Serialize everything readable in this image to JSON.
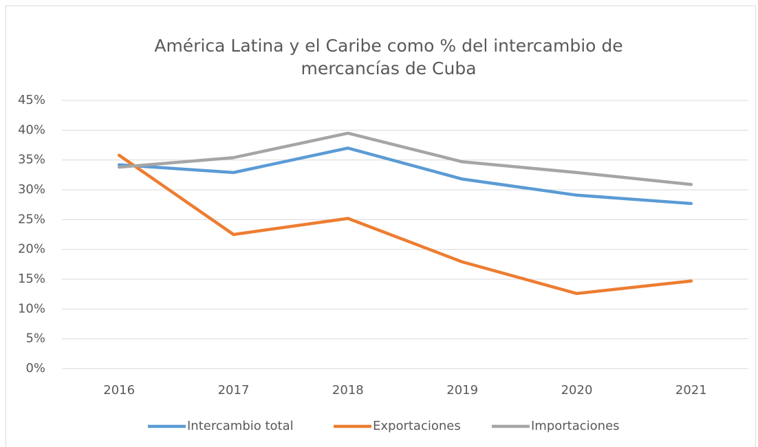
{
  "chart_data": {
    "type": "line",
    "title": "América Latina y el Caribe como % del intercambio de mercancías de Cuba",
    "categories": [
      "2016",
      "2017",
      "2018",
      "2019",
      "2020",
      "2021"
    ],
    "series": [
      {
        "name": "Intercambio total",
        "color": "#5b9bd5",
        "values": [
          34.2,
          32.9,
          37.0,
          31.8,
          29.1,
          27.7
        ]
      },
      {
        "name": "Exportaciones",
        "color": "#ed7d31",
        "values": [
          35.8,
          22.5,
          25.2,
          17.9,
          12.6,
          14.7
        ]
      },
      {
        "name": "Importaciones",
        "color": "#a5a5a5",
        "values": [
          33.8,
          35.4,
          39.5,
          34.7,
          32.9,
          30.9
        ]
      }
    ],
    "ylim": [
      0,
      45
    ],
    "yticks": [
      {
        "value": 0,
        "label": "0%"
      },
      {
        "value": 5,
        "label": "5%"
      },
      {
        "value": 10,
        "label": "10%"
      },
      {
        "value": 15,
        "label": "15%"
      },
      {
        "value": 20,
        "label": "20%"
      },
      {
        "value": 25,
        "label": "25%"
      },
      {
        "value": 30,
        "label": "30%"
      },
      {
        "value": 35,
        "label": "35%"
      },
      {
        "value": 40,
        "label": "40%"
      },
      {
        "value": 45,
        "label": "45%"
      }
    ],
    "grid": true,
    "legend": "bottom"
  }
}
